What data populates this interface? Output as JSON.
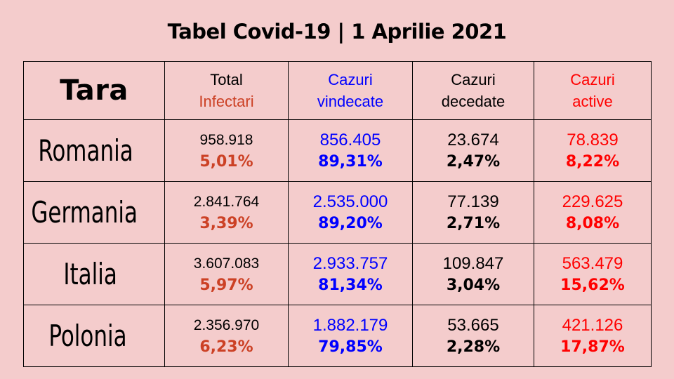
{
  "title": "Tabel Covid-19  |  1 Aprilie 2021",
  "header": {
    "tara": "Tara",
    "total_line1": "Total",
    "total_line2": "Infectari",
    "vindecate_line1": "Cazuri",
    "vindecate_line2": "vindecate",
    "decedate_line1": "Cazuri",
    "decedate_line2": "decedate",
    "active_line1": "Cazuri",
    "active_line2": "active"
  },
  "colors": {
    "background": "#f4cccc",
    "total_pct": "#cc4125",
    "vindecate": "#0000ff",
    "decedate": "#000000",
    "active": "#ff0000"
  },
  "rows": [
    {
      "country": "Romania",
      "total": "958.918",
      "total_pct": "5,01%",
      "vindecate": "856.405",
      "vindecate_pct": "89,31%",
      "decedate": "23.674",
      "decedate_pct": "2,47%",
      "active": "78.839",
      "active_pct": "8,22%"
    },
    {
      "country": "Germania",
      "total": "2.841.764",
      "total_pct": "3,39%",
      "vindecate": "2.535.000",
      "vindecate_pct": "89,20%",
      "decedate": "77.139",
      "decedate_pct": "2,71%",
      "active": "229.625",
      "active_pct": "8,08%"
    },
    {
      "country": "Italia",
      "total": "3.607.083",
      "total_pct": "5,97%",
      "vindecate": "2.933.757",
      "vindecate_pct": "81,34%",
      "decedate": "109.847",
      "decedate_pct": "3,04%",
      "active": "563.479",
      "active_pct": "15,62%"
    },
    {
      "country": "Polonia",
      "total": "2.356.970",
      "total_pct": "6,23%",
      "vindecate": "1.882.179",
      "vindecate_pct": "79,85%",
      "decedate": "53.665",
      "decedate_pct": "2,28%",
      "active": "421.126",
      "active_pct": "17,87%"
    }
  ]
}
